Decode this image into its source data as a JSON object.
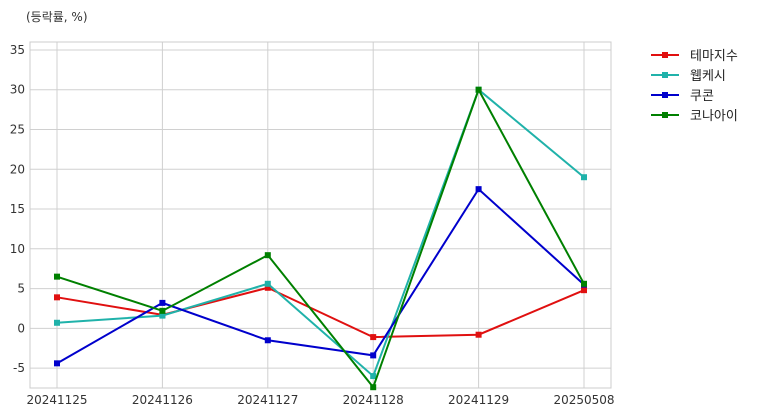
{
  "chart_data": {
    "type": "line",
    "unit_label": "(등락률, %)",
    "title": "",
    "xlabel": "",
    "ylabel": "",
    "categories": [
      "20241125",
      "20241126",
      "20241127",
      "20241128",
      "20241129",
      "20250508"
    ],
    "ylim": [
      -7.5,
      36
    ],
    "yticks": [
      -5,
      0,
      5,
      10,
      15,
      20,
      25,
      30,
      35
    ],
    "grid": true,
    "legend_position": "outside-top-right",
    "series": [
      {
        "name": "테마지수",
        "color": "#e01010",
        "values": [
          3.9,
          1.7,
          5.1,
          -1.1,
          -0.8,
          4.8
        ]
      },
      {
        "name": "웹케시",
        "color": "#20b2aa",
        "values": [
          0.7,
          1.6,
          5.6,
          -6.0,
          30.0,
          19.0
        ]
      },
      {
        "name": "쿠콘",
        "color": "#0000cc",
        "values": [
          -4.4,
          3.2,
          -1.5,
          -3.4,
          17.5,
          5.5
        ]
      },
      {
        "name": "코나아이",
        "color": "#008000",
        "values": [
          6.5,
          2.2,
          9.2,
          -7.4,
          30.0,
          5.6
        ]
      }
    ]
  }
}
